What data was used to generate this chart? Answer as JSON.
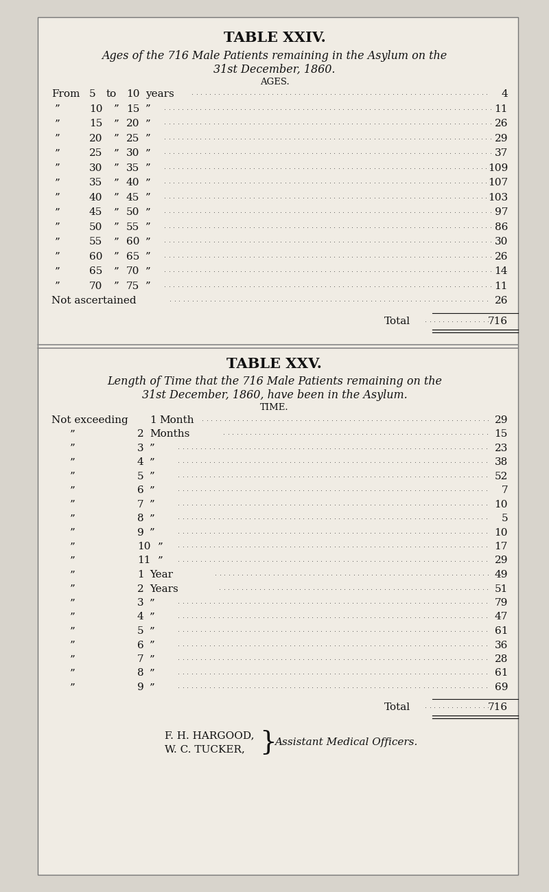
{
  "bg_color": "#d8d4cc",
  "paper_color": "#f0ece4",
  "border_color": "#777777",
  "text_color": "#111111",
  "dot_color": "#444444",
  "table24_title": "TABLE XXIV.",
  "table24_subtitle1": "Ages of the 716 Male Patients remaining in the Asylum on the",
  "table24_subtitle2": "31st December, 1860.",
  "table24_col_header": "AGES.",
  "table24_rows": [
    [
      "From  5 to 10 years",
      "4"
    ],
    [
      "”  10 ” 15  ”",
      "11"
    ],
    [
      "”  15 ” 20  ”",
      "26"
    ],
    [
      "”  20 ” 25  ”",
      "29"
    ],
    [
      "”  25 ” 30  ”",
      "37"
    ],
    [
      "”  30 ” 35  ”",
      "109"
    ],
    [
      "”  35 ” 40  ”",
      "107"
    ],
    [
      "”  40 ” 45  ”",
      "103"
    ],
    [
      "”  45 ” 50  ”",
      "97"
    ],
    [
      "”  50 ” 55  ”",
      "86"
    ],
    [
      "”  55 ” 60  ”",
      "30"
    ],
    [
      "”  60 ” 65  ”",
      "26"
    ],
    [
      "”  65 ” 70  ”",
      "14"
    ],
    [
      "”  70 ” 75  ”",
      "11"
    ],
    [
      "Not ascertained",
      "26"
    ]
  ],
  "table24_total": "716",
  "table25_title": "TABLE XXV.",
  "table25_subtitle1": "Length of Time that the 716 Male Patients remaining on the",
  "table25_subtitle2": "31st December, 1860, have been in the Asylum.",
  "table25_col_header": "TIME.",
  "table25_rows": [
    [
      "Not exceeding 1 Month",
      "29"
    ],
    [
      "”            2 Months",
      "15"
    ],
    [
      "”            3  ”",
      "23"
    ],
    [
      "”            4  ”",
      "38"
    ],
    [
      "”            5  ”",
      "52"
    ],
    [
      "”            6  ”",
      "7"
    ],
    [
      "”            7  ”",
      "10"
    ],
    [
      "”            8  ”",
      "5"
    ],
    [
      "”            9  ”",
      "10"
    ],
    [
      "”          10  ”",
      "17"
    ],
    [
      "”          11  ”",
      "29"
    ],
    [
      "”            1 Year",
      "49"
    ],
    [
      "”            2 Years",
      "51"
    ],
    [
      "”            3  ”",
      "79"
    ],
    [
      "”            4  ”",
      "47"
    ],
    [
      "”            5  ”",
      "61"
    ],
    [
      "”            6  ”",
      "36"
    ],
    [
      "”            7  ”",
      "28"
    ],
    [
      "”            8  ”",
      "61"
    ],
    [
      "”            9  ”",
      "69"
    ]
  ],
  "table25_total": "716",
  "footer_left1": "F. H. HARGOOD,",
  "footer_left2": "W. C. TUCKER,",
  "footer_right": "Assistant Medical Officers."
}
